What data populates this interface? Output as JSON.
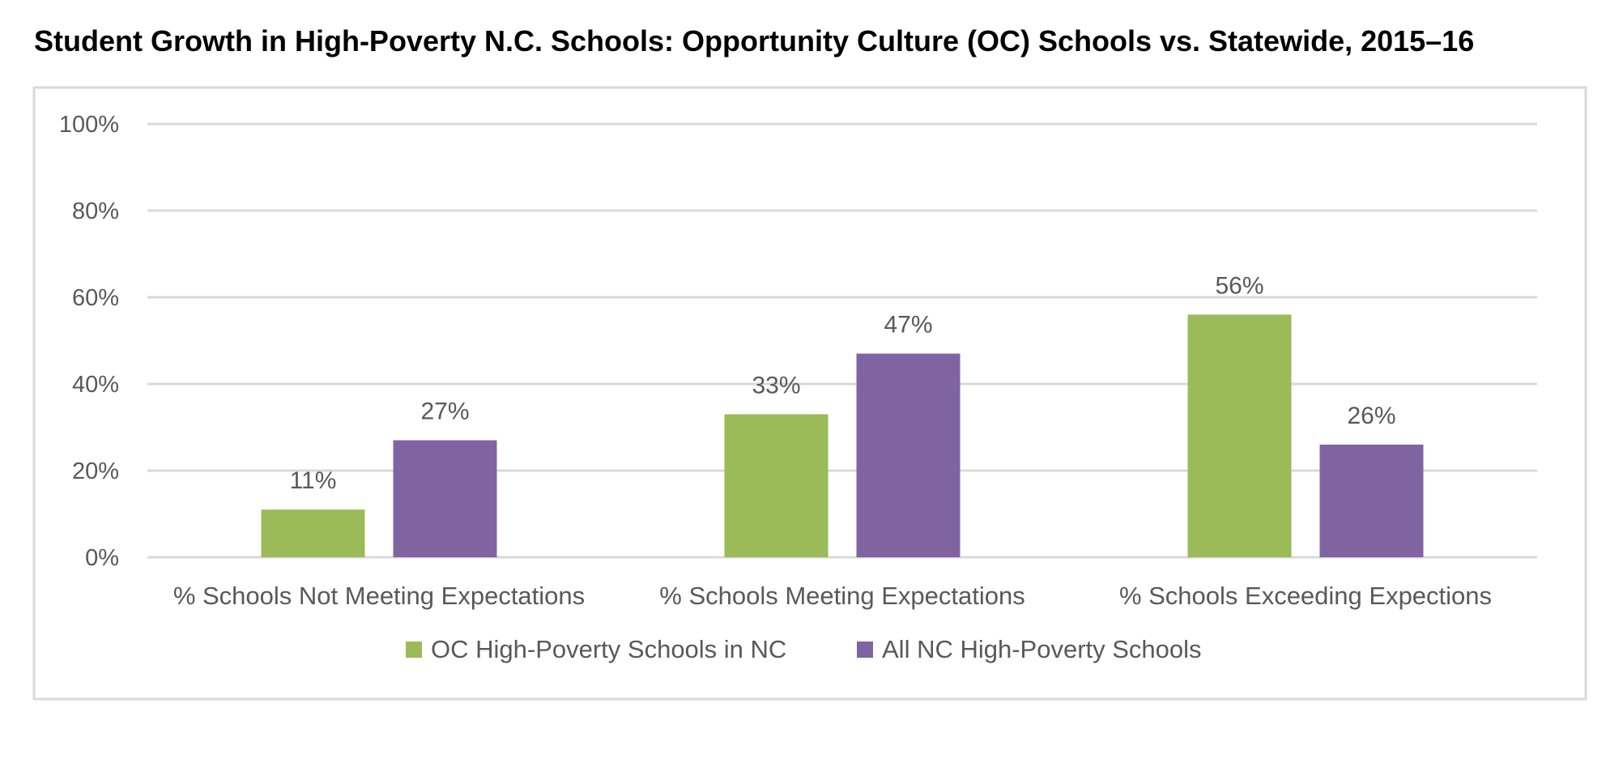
{
  "chart_data": {
    "type": "bar",
    "title": "Student Growth in High-Poverty N.C. Schools: Opportunity Culture (OC) Schools vs. Statewide, 2015–16",
    "xlabel": "",
    "ylabel": "",
    "categories": [
      "% Schools Not Meeting Expectations",
      "% Schools Meeting Expectations",
      "% Schools Exceeding Expections"
    ],
    "series": [
      {
        "name": "OC High-Poverty Schools in NC",
        "color": "#9bbb59",
        "values": [
          11,
          33,
          56
        ],
        "labels": [
          "11%",
          "33%",
          "56%"
        ]
      },
      {
        "name": "All NC High-Poverty Schools",
        "color": "#8064a2",
        "values": [
          27,
          47,
          26
        ],
        "labels": [
          "27%",
          "47%",
          "26%"
        ]
      }
    ],
    "ylim": [
      0,
      100
    ],
    "yticks": [
      0,
      20,
      40,
      60,
      80,
      100
    ],
    "ytick_labels": [
      "0%",
      "20%",
      "40%",
      "60%",
      "80%",
      "100%"
    ],
    "grid": true,
    "legend_position": "bottom"
  },
  "colors": {
    "gridline": "#d9d9d9",
    "frame": "#d9d9d9",
    "text": "#595959"
  }
}
